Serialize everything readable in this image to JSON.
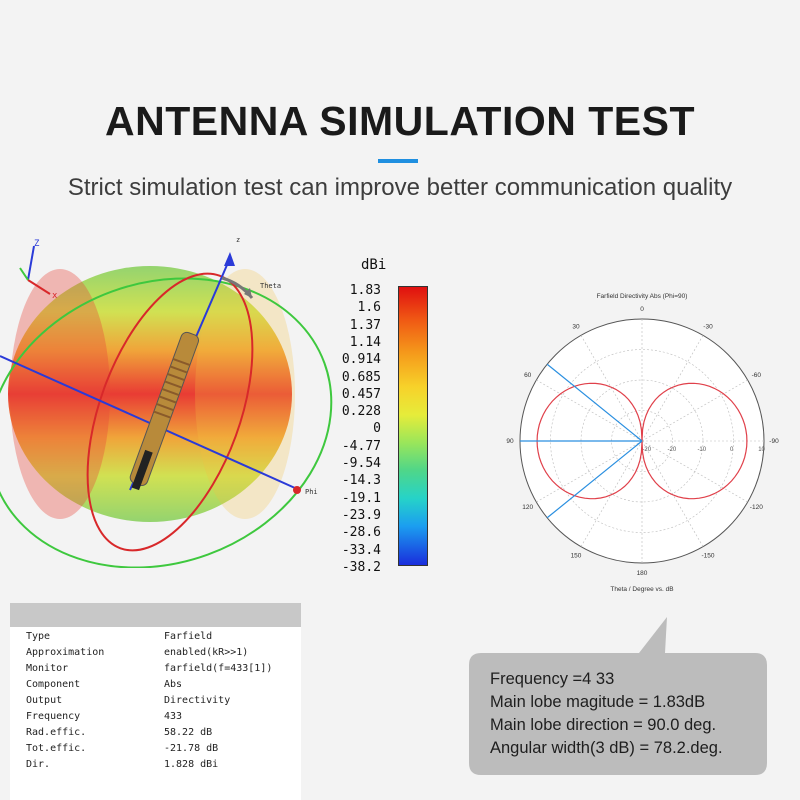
{
  "header": {
    "title": "ANTENNA SIMULATION TEST",
    "subtitle": "Strict simulation test can improve better communication quality"
  },
  "sim3d": {
    "axis_labels": {
      "z_small": "Z",
      "x_small": "x",
      "z_main": "z",
      "theta": "Theta",
      "phi": "Phi"
    }
  },
  "scale": {
    "unit": "dBi",
    "ticks": [
      "1.83",
      "1.6",
      "1.37",
      "1.14",
      "0.914",
      "0.685",
      "0.457",
      "0.228",
      "0",
      "-4.77",
      "-9.54",
      "-14.3",
      "-19.1",
      "-23.9",
      "-28.6",
      "-33.4",
      "-38.2"
    ]
  },
  "polar": {
    "title": "Farfield Directivity Abs (Phi=90)",
    "xlabel": "Theta / Degree vs. dB",
    "angle_labels": [
      "0",
      "30",
      "-30",
      "60",
      "-60",
      "90",
      "-90",
      "120",
      "-120",
      "150",
      "-150",
      "180"
    ],
    "radial_labels": [
      "-20",
      "-20",
      "-10",
      "0",
      "10"
    ],
    "colors": {
      "pattern": "#e0404a",
      "beam": "#2a8fe0"
    }
  },
  "results_table": {
    "rows": [
      {
        "label": "Type",
        "value": "Farfield"
      },
      {
        "label": "Approximation",
        "value": "enabled(kR>>1)"
      },
      {
        "label": "Monitor",
        "value": "farfield(f=433[1])"
      },
      {
        "label": "Component",
        "value": "Abs"
      },
      {
        "label": "Output",
        "value": "Directivity"
      },
      {
        "label": "Frequency",
        "value": "433"
      },
      {
        "label": "Rad.effic.",
        "value": "58.22 dB"
      },
      {
        "label": "Tot.effic.",
        "value": "-21.78 dB"
      },
      {
        "label": "Dir.",
        "value": "1.828 dBi"
      }
    ]
  },
  "callout": {
    "lines": [
      "Frequency =4 33",
      "Main lobe magitude  =    1.83dB",
      "Main lobe direction  =    90.0 deg.",
      "Angular width(3 dB) =   78.2.deg."
    ],
    "color": "#bcbcbc"
  }
}
